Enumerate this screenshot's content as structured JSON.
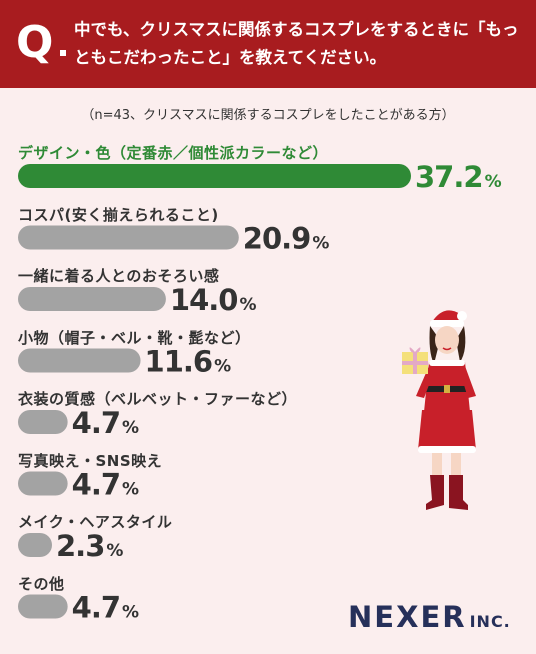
{
  "header": {
    "q_mark": "Q",
    "question": "中でも、クリスマスに関係するコスプレをするときに「もっともこだわったこと」を教えてください。",
    "bg_color": "#a81c1f"
  },
  "note": "（n=43、クリスマスに関係するコスプレをしたことがある方）",
  "brand": {
    "name": "NEXER",
    "suffix": "INC."
  },
  "colors": {
    "highlight": "#2f8a36",
    "bar": "#a3a3a3",
    "value_text": "#333333"
  },
  "chart_data": {
    "type": "bar",
    "orientation": "horizontal",
    "unit": "%",
    "xlim": [
      0,
      40
    ],
    "grid": false,
    "categories": [
      "デザイン・色（定番赤／個性派カラーなど）",
      "コスパ(安く揃えられること)",
      "一緒に着る人とのおそろい感",
      "小物（帽子・ベル・靴・髭など）",
      "衣装の質感（ベルベット・ファーなど）",
      "写真映え・SNS映え",
      "メイク・ヘアスタイル",
      "その他"
    ],
    "values": [
      37.2,
      20.9,
      14.0,
      11.6,
      4.7,
      4.7,
      2.3,
      4.7
    ],
    "value_labels": [
      "37.2",
      "20.9",
      "14.0",
      "11.6",
      "4.7",
      "4.7",
      "2.3",
      "4.7"
    ],
    "highlight_index": 0
  }
}
